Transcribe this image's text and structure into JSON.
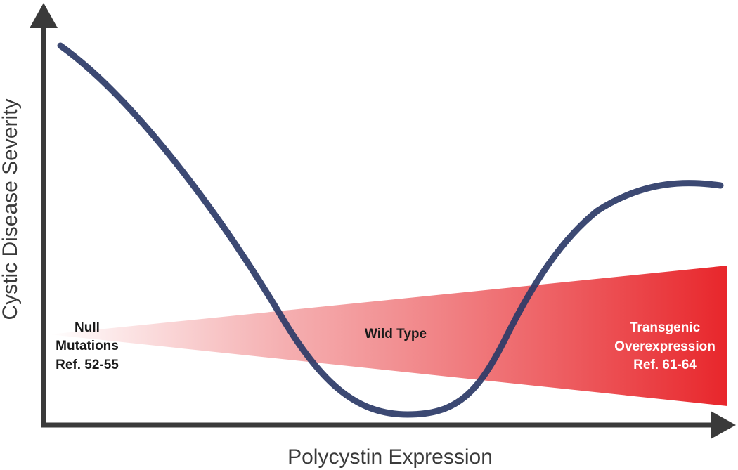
{
  "axes": {
    "y_label": "Cystic Disease Severity",
    "x_label": "Polycystin Expression"
  },
  "regions": {
    "null": {
      "lines": [
        "Null",
        "Mutations",
        "Ref. 52-55"
      ],
      "color": "#1a1a1a"
    },
    "wild": {
      "lines": [
        "Wild Type"
      ],
      "color": "#1a1a1a"
    },
    "transgenic": {
      "lines": [
        "Transgenic",
        "Overexpression",
        "Ref. 61-64"
      ],
      "color": "#ffffff"
    }
  },
  "colors": {
    "axis": "#3a3a3a",
    "curve": "#2b3a67",
    "wedge_start": "#ffffff",
    "wedge_end": "#e8262b"
  }
}
